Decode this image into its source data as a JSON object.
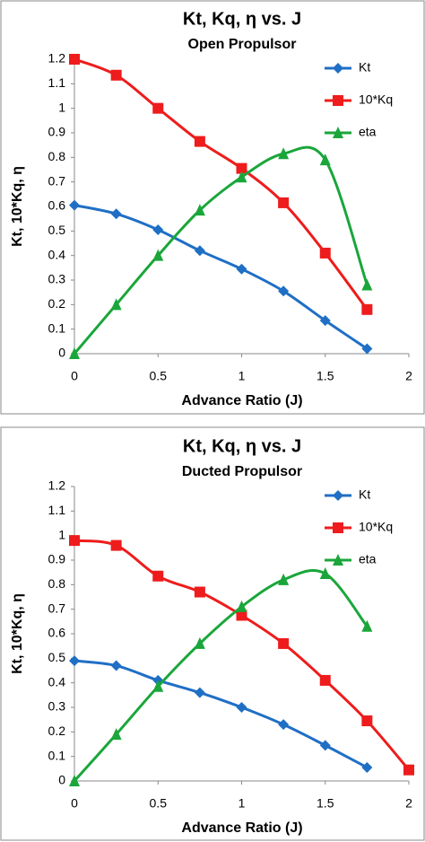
{
  "chart_data": [
    {
      "type": "line",
      "title": "Kt, Kq, η vs. J",
      "subtitle": "Open Propulsor",
      "x_label": "Advance Ratio (J)",
      "y_label": "Kt, 10*Kq, η",
      "xlim": [
        0,
        2
      ],
      "xticks": [
        0,
        0.5,
        1,
        1.5,
        2
      ],
      "ylim": [
        0,
        1.2
      ],
      "yticks": [
        0,
        0.1,
        0.2,
        0.3,
        0.4,
        0.5,
        0.6,
        0.7,
        0.8,
        0.9,
        1,
        1.1,
        1.2
      ],
      "grid": false,
      "legend": "top-right",
      "series": [
        {
          "name": "Kt",
          "color": "#1f6fc5",
          "marker": "diamond",
          "x": [
            0,
            0.25,
            0.5,
            0.75,
            1,
            1.25,
            1.5,
            1.75
          ],
          "values": [
            0.605,
            0.57,
            0.505,
            0.42,
            0.345,
            0.255,
            0.135,
            0.02
          ]
        },
        {
          "name": "10*Kq",
          "color": "#ee1c1c",
          "marker": "square",
          "x": [
            0,
            0.25,
            0.5,
            0.75,
            1,
            1.25,
            1.5,
            1.75
          ],
          "values": [
            1.2,
            1.135,
            1.0,
            0.865,
            0.755,
            0.615,
            0.41,
            0.18
          ]
        },
        {
          "name": "eta",
          "color": "#1aa63a",
          "marker": "triangle",
          "x": [
            0,
            0.25,
            0.5,
            0.75,
            1,
            1.25,
            1.5,
            1.75
          ],
          "values": [
            0,
            0.2,
            0.4,
            0.585,
            0.72,
            0.815,
            0.79,
            0.28
          ]
        }
      ]
    },
    {
      "type": "line",
      "title": "Kt, Kq, η vs. J",
      "subtitle": "Ducted Propulsor",
      "x_label": "Advance Ratio (J)",
      "y_label": "Kt, 10*Kq, η",
      "xlim": [
        0,
        2
      ],
      "xticks": [
        0,
        0.5,
        1,
        1.5,
        2
      ],
      "ylim": [
        0,
        1.2
      ],
      "yticks": [
        0,
        0.1,
        0.2,
        0.3,
        0.4,
        0.5,
        0.6,
        0.7,
        0.8,
        0.9,
        1,
        1.1,
        1.2
      ],
      "grid": false,
      "legend": "top-right",
      "series": [
        {
          "name": "Kt",
          "color": "#1f6fc5",
          "marker": "diamond",
          "x": [
            0,
            0.25,
            0.5,
            0.75,
            1,
            1.25,
            1.5,
            1.75
          ],
          "values": [
            0.49,
            0.47,
            0.41,
            0.36,
            0.3,
            0.23,
            0.145,
            0.055
          ]
        },
        {
          "name": "10*Kq",
          "color": "#ee1c1c",
          "marker": "square",
          "x": [
            0,
            0.25,
            0.5,
            0.75,
            1,
            1.25,
            1.5,
            1.75,
            2
          ],
          "values": [
            0.98,
            0.96,
            0.835,
            0.77,
            0.675,
            0.56,
            0.41,
            0.245,
            0.045
          ]
        },
        {
          "name": "eta",
          "color": "#1aa63a",
          "marker": "triangle",
          "x": [
            0,
            0.25,
            0.5,
            0.75,
            1,
            1.25,
            1.5,
            1.75
          ],
          "values": [
            0,
            0.19,
            0.385,
            0.56,
            0.71,
            0.82,
            0.845,
            0.63
          ]
        }
      ]
    }
  ]
}
